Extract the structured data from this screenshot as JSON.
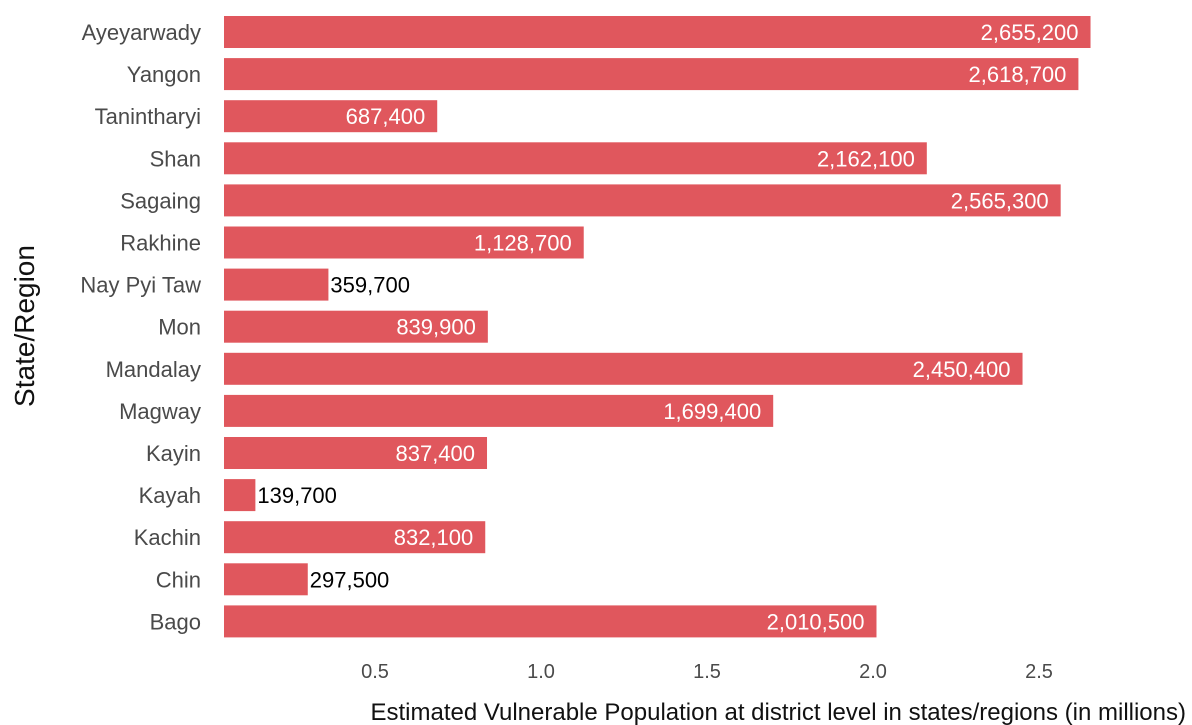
{
  "chart_data": {
    "type": "bar",
    "orientation": "horizontal",
    "categories": [
      "Ayeyarwady",
      "Yangon",
      "Tanintharyi",
      "Shan",
      "Sagaing",
      "Rakhine",
      "Nay Pyi Taw",
      "Mon",
      "Mandalay",
      "Magway",
      "Kayin",
      "Kayah",
      "Kachin",
      "Chin",
      "Bago"
    ],
    "values": [
      2655200,
      2618700,
      687400,
      2162100,
      2565300,
      1128700,
      359700,
      839900,
      2450400,
      1699400,
      837400,
      139700,
      832100,
      297500,
      2010500
    ],
    "data_labels": [
      "2,655,200",
      "2,618,700",
      "687,400",
      "2,162,100",
      "2,565,300",
      "1,128,700",
      "359,700",
      "839,900",
      "2,450,400",
      "1,699,400",
      "837,400",
      "139,700",
      "832,100",
      "297,500",
      "2,010,500"
    ],
    "xlabel": "Estimated Vulnerable Population at district level in states/regions (in millions)",
    "ylabel": "State/Region",
    "x_ticks": [
      "0.5",
      "1.0",
      "1.5",
      "2.0",
      "2.5"
    ],
    "x_tick_values": [
      0.5,
      1.0,
      1.5,
      2.0,
      2.5
    ],
    "xlim": [
      0,
      2.7
    ],
    "grid": false,
    "bar_color": "#e0575d",
    "label_color_inside": "#ffffff",
    "label_color_outside": "#000000"
  }
}
